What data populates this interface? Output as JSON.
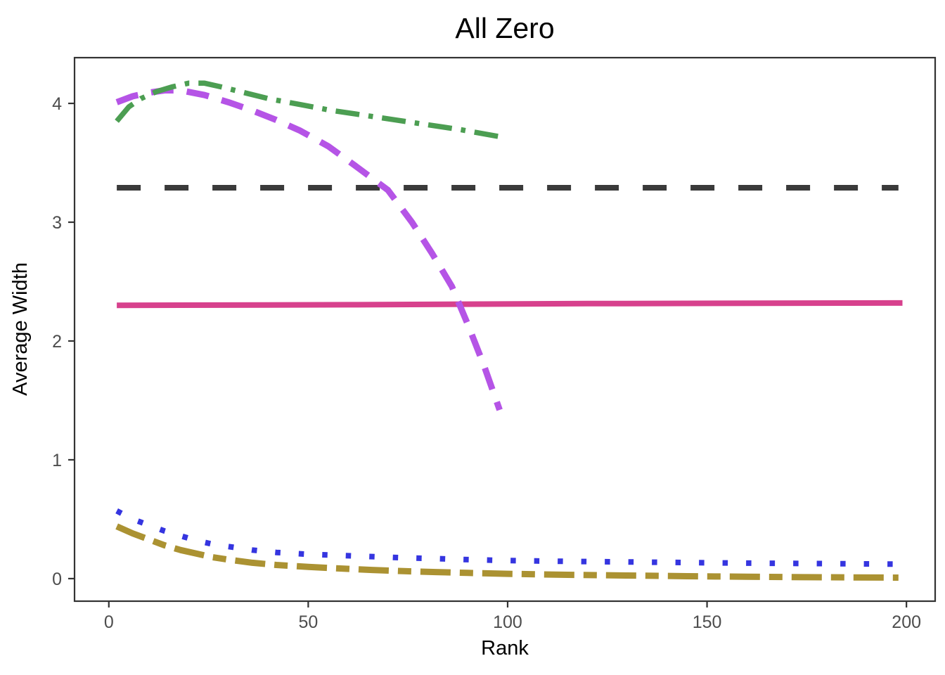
{
  "figure": {
    "background_color": "#ffffff",
    "panel_border_color": "#333333",
    "tick_color": "#333333",
    "tick_label_color": "#4D4D4D",
    "title_color": "#000000"
  },
  "chart_data": {
    "type": "line",
    "title": "All Zero",
    "xlabel": "Rank",
    "ylabel": "Average Width",
    "xlim": [
      -8.6,
      207.2
    ],
    "ylim": [
      -0.19,
      4.385
    ],
    "x_ticks": [
      0,
      50,
      100,
      150,
      200
    ],
    "y_ticks": [
      0,
      1,
      2,
      3,
      4
    ],
    "grid": false,
    "legend_position": "none",
    "series": [
      {
        "name": "black-longdash-constant",
        "color": "#3A3A3A",
        "style": "longdash",
        "stroke_width": 8,
        "points": [
          [
            2,
            3.29
          ],
          [
            198,
            3.29
          ]
        ]
      },
      {
        "name": "pink-solid",
        "color": "#D7418D",
        "style": "solid",
        "stroke_width": 8,
        "points": [
          [
            2,
            2.3
          ],
          [
            60,
            2.305
          ],
          [
            120,
            2.315
          ],
          [
            199,
            2.32
          ]
        ]
      },
      {
        "name": "blue-dotted",
        "color": "#3535E0",
        "style": "dotted",
        "stroke_width": 8,
        "points": [
          [
            2,
            0.57
          ],
          [
            6,
            0.5
          ],
          [
            10,
            0.45
          ],
          [
            14,
            0.4
          ],
          [
            18,
            0.36
          ],
          [
            22,
            0.32
          ],
          [
            26,
            0.29
          ],
          [
            30,
            0.27
          ],
          [
            36,
            0.24
          ],
          [
            42,
            0.22
          ],
          [
            50,
            0.205
          ],
          [
            58,
            0.195
          ],
          [
            66,
            0.185
          ],
          [
            74,
            0.175
          ],
          [
            82,
            0.168
          ],
          [
            90,
            0.16
          ],
          [
            100,
            0.152
          ],
          [
            115,
            0.145
          ],
          [
            130,
            0.14
          ],
          [
            145,
            0.135
          ],
          [
            160,
            0.13
          ],
          [
            175,
            0.127
          ],
          [
            198,
            0.122
          ]
        ]
      },
      {
        "name": "olive-longdash-shortdash",
        "color": "#AB9232",
        "style": "longdash-shortdash",
        "stroke_width": 9,
        "points": [
          [
            2,
            0.44
          ],
          [
            6,
            0.38
          ],
          [
            10,
            0.33
          ],
          [
            14,
            0.28
          ],
          [
            18,
            0.24
          ],
          [
            22,
            0.21
          ],
          [
            26,
            0.18
          ],
          [
            30,
            0.16
          ],
          [
            36,
            0.133
          ],
          [
            42,
            0.115
          ],
          [
            50,
            0.098
          ],
          [
            58,
            0.085
          ],
          [
            66,
            0.073
          ],
          [
            74,
            0.063
          ],
          [
            82,
            0.055
          ],
          [
            90,
            0.048
          ],
          [
            100,
            0.04
          ],
          [
            115,
            0.032
          ],
          [
            130,
            0.026
          ],
          [
            145,
            0.02
          ],
          [
            160,
            0.016
          ],
          [
            175,
            0.012
          ],
          [
            198,
            0.008
          ]
        ]
      },
      {
        "name": "purple-dashed",
        "color": "#B554E6",
        "style": "dashed",
        "stroke_width": 9,
        "points": [
          [
            2,
            4.01
          ],
          [
            6,
            4.06
          ],
          [
            10,
            4.09
          ],
          [
            14,
            4.11
          ],
          [
            18,
            4.11
          ],
          [
            24,
            4.07
          ],
          [
            30,
            4.01
          ],
          [
            36,
            3.94
          ],
          [
            42,
            3.86
          ],
          [
            48,
            3.77
          ],
          [
            55,
            3.64
          ],
          [
            62,
            3.47
          ],
          [
            70,
            3.27
          ],
          [
            76,
            3.0
          ],
          [
            81,
            2.74
          ],
          [
            86,
            2.46
          ],
          [
            90,
            2.14
          ],
          [
            94,
            1.8
          ],
          [
            98,
            1.42
          ]
        ]
      },
      {
        "name": "green-dotdash",
        "color": "#4C9E52",
        "style": "dotdash",
        "stroke_width": 7.5,
        "points": [
          [
            2,
            3.85
          ],
          [
            5,
            3.97
          ],
          [
            8,
            4.04
          ],
          [
            12,
            4.1
          ],
          [
            16,
            4.14
          ],
          [
            20,
            4.17
          ],
          [
            24,
            4.17
          ],
          [
            28,
            4.14
          ],
          [
            34,
            4.09
          ],
          [
            40,
            4.04
          ],
          [
            48,
            3.99
          ],
          [
            56,
            3.94
          ],
          [
            64,
            3.9
          ],
          [
            72,
            3.86
          ],
          [
            80,
            3.82
          ],
          [
            88,
            3.78
          ],
          [
            98,
            3.72
          ]
        ]
      }
    ]
  }
}
